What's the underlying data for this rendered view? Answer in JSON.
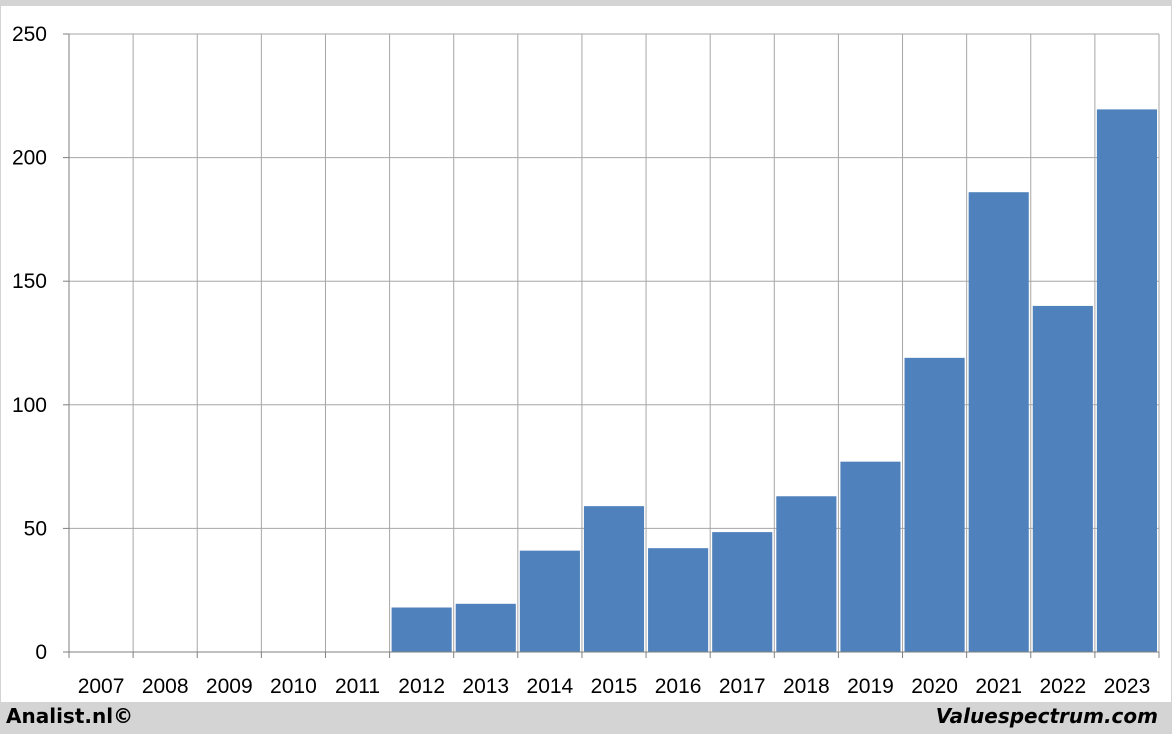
{
  "chart_data": {
    "type": "bar",
    "categories": [
      "2007",
      "2008",
      "2009",
      "2010",
      "2011",
      "2012",
      "2013",
      "2014",
      "2015",
      "2016",
      "2017",
      "2018",
      "2019",
      "2020",
      "2021",
      "2022",
      "2023"
    ],
    "values": [
      null,
      null,
      null,
      null,
      null,
      18,
      19.5,
      41,
      59,
      42,
      48.5,
      63,
      77,
      119,
      186,
      140,
      219.5
    ],
    "title": "",
    "xlabel": "",
    "ylabel": "",
    "ylim": [
      0,
      250
    ],
    "yticks": [
      0,
      50,
      100,
      150,
      200,
      250
    ],
    "grid": true,
    "bar_color": "#4f81bd"
  },
  "footer": {
    "left_text": "Analist.nl©",
    "right_text": "Valuespectrum.com"
  }
}
